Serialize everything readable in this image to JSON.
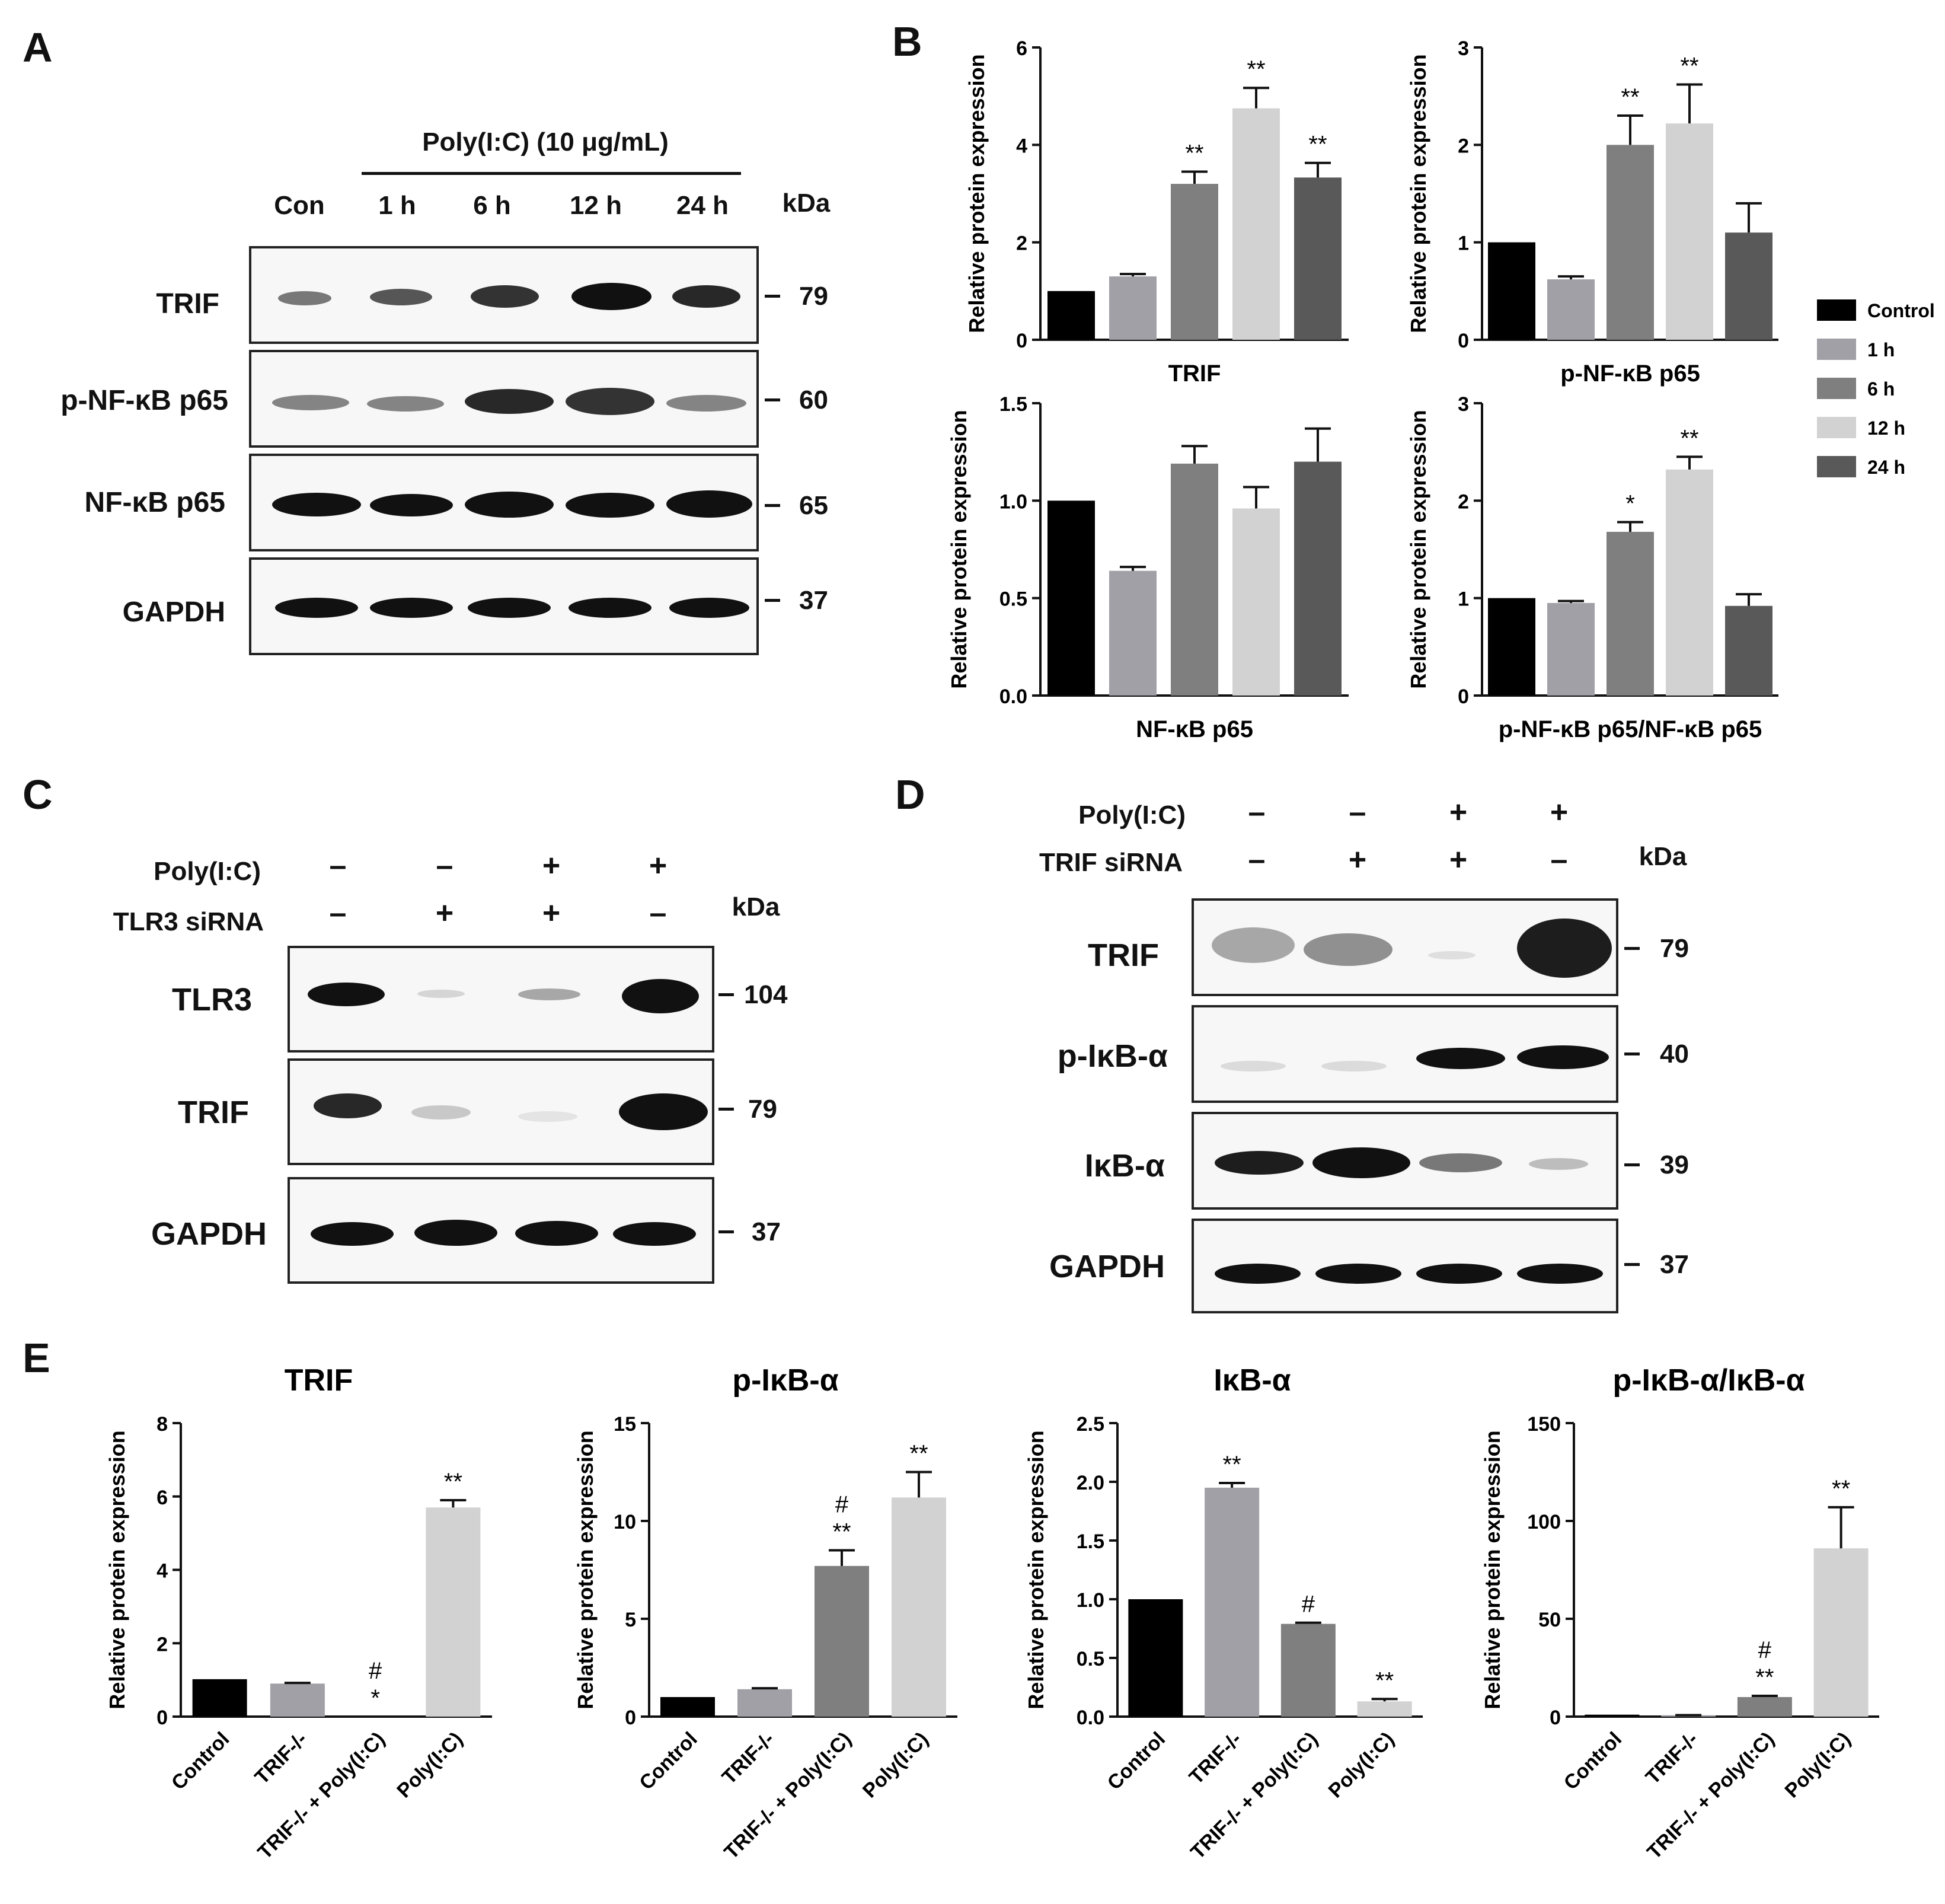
{
  "panels": {
    "A": {
      "letter": "A",
      "treatment": "Poly(I:C) (10 μg/mL)",
      "lanes": [
        "Con",
        "1 h",
        "6 h",
        "12 h",
        "24 h"
      ],
      "kda_label": "kDa",
      "rows": [
        {
          "label": "TRIF",
          "kda": "79"
        },
        {
          "label": "p-NF-κB p65",
          "kda": "60"
        },
        {
          "label": "NF-κB p65",
          "kda": "65"
        },
        {
          "label": "GAPDH",
          "kda": "37"
        }
      ]
    },
    "B": {
      "letter": "B"
    },
    "C": {
      "letter": "C",
      "cond1_label": "Poly(I:C)",
      "cond1": [
        "–",
        "–",
        "+",
        "+"
      ],
      "cond2_label": "TLR3 siRNA",
      "cond2": [
        "–",
        "+",
        "+",
        "–"
      ],
      "kda_label": "kDa",
      "rows": [
        {
          "label": "TLR3",
          "kda": "104"
        },
        {
          "label": "TRIF",
          "kda": "79"
        },
        {
          "label": "GAPDH",
          "kda": "37"
        }
      ]
    },
    "D": {
      "letter": "D",
      "cond1_label": "Poly(I:C)",
      "cond1": [
        "–",
        "–",
        "+",
        "+"
      ],
      "cond2_label": "TRIF siRNA",
      "cond2": [
        "–",
        "+",
        "+",
        "–"
      ],
      "kda_label": "kDa",
      "rows": [
        {
          "label": "TRIF",
          "kda": "79"
        },
        {
          "label": "p-IκB-α",
          "kda": "40"
        },
        {
          "label": "IκB-α",
          "kda": "39"
        },
        {
          "label": "GAPDH",
          "kda": "37"
        }
      ]
    },
    "E": {
      "letter": "E"
    }
  },
  "chart_data": [
    {
      "panel": "B",
      "type": "bar",
      "title": "",
      "xlabel": "TRIF",
      "ylabel": "Relative protein expression",
      "ylim": [
        0,
        6
      ],
      "yticks": [
        "0",
        "2",
        "4",
        "6"
      ],
      "categories": [
        "Control",
        "1 h",
        "6 h",
        "12 h",
        "24 h"
      ],
      "values": [
        1.0,
        1.3,
        3.2,
        4.75,
        3.33
      ],
      "errors": [
        0,
        0.05,
        0.25,
        0.42,
        0.3
      ],
      "annotations": [
        "",
        "",
        "**",
        "**",
        "**"
      ],
      "colors": [
        "#000000",
        "#a0a0a6",
        "#7f7f7f",
        "#d2d2d2",
        "#595959"
      ]
    },
    {
      "panel": "B",
      "type": "bar",
      "title": "",
      "xlabel": "p-NF-κB p65",
      "ylabel": "Relative protein expression",
      "ylim": [
        0,
        3
      ],
      "yticks": [
        "0",
        "1",
        "2",
        "3"
      ],
      "categories": [
        "Control",
        "1 h",
        "6 h",
        "12 h",
        "24 h"
      ],
      "values": [
        1.0,
        0.62,
        2.0,
        2.22,
        1.1
      ],
      "errors": [
        0,
        0.03,
        0.3,
        0.4,
        0.3
      ],
      "annotations": [
        "",
        "",
        "**",
        "**",
        ""
      ],
      "colors": [
        "#000000",
        "#a0a0a6",
        "#7f7f7f",
        "#d2d2d2",
        "#595959"
      ]
    },
    {
      "panel": "B",
      "type": "bar",
      "title": "",
      "xlabel": "NF-κB p65",
      "ylabel": "Relative protein expression",
      "ylim": [
        0,
        1.5
      ],
      "yticks": [
        "0.0",
        "0.5",
        "1.0",
        "1.5"
      ],
      "categories": [
        "Control",
        "1 h",
        "6 h",
        "12 h",
        "24 h"
      ],
      "values": [
        1.0,
        0.64,
        1.19,
        0.96,
        1.2
      ],
      "errors": [
        0,
        0.02,
        0.09,
        0.11,
        0.17
      ],
      "annotations": [
        "",
        "",
        "",
        "",
        ""
      ],
      "colors": [
        "#000000",
        "#a0a0a6",
        "#7f7f7f",
        "#d2d2d2",
        "#595959"
      ]
    },
    {
      "panel": "B",
      "type": "bar",
      "title": "",
      "xlabel": "p-NF-κB p65/NF-κB p65",
      "ylabel": "Relative protein expression",
      "ylim": [
        0,
        3
      ],
      "yticks": [
        "0",
        "1",
        "2",
        "3"
      ],
      "categories": [
        "Control",
        "1 h",
        "6 h",
        "12 h",
        "24 h"
      ],
      "values": [
        1.0,
        0.95,
        1.68,
        2.32,
        0.92
      ],
      "errors": [
        0,
        0.02,
        0.1,
        0.13,
        0.12
      ],
      "annotations": [
        "",
        "",
        "*",
        "**",
        ""
      ],
      "colors": [
        "#000000",
        "#a0a0a6",
        "#7f7f7f",
        "#d2d2d2",
        "#595959"
      ]
    },
    {
      "panel": "E",
      "type": "bar",
      "title": "TRIF",
      "xlabel": "",
      "ylabel": "Relative protein expression",
      "ylim": [
        0,
        8
      ],
      "yticks": [
        "0",
        "2",
        "4",
        "6",
        "8"
      ],
      "categories": [
        "Control",
        "TRIF-/-",
        "TRIF-/- + Poly(I:C)",
        "Poly(I:C)"
      ],
      "values": [
        1.02,
        0.9,
        0.0,
        5.7
      ],
      "errors": [
        0,
        0.02,
        0,
        0.2
      ],
      "annotations": [
        "",
        "",
        "#\n*",
        "**"
      ],
      "colors": [
        "#000000",
        "#a0a0a6",
        "#7f7f7f",
        "#d2d2d2"
      ]
    },
    {
      "panel": "E",
      "type": "bar",
      "title": "p-IκB-α",
      "xlabel": "",
      "ylabel": "Relative protein expression",
      "ylim": [
        0,
        15
      ],
      "yticks": [
        "0",
        "5",
        "10",
        "15"
      ],
      "categories": [
        "Control",
        "TRIF-/-",
        "TRIF-/- + Poly(I:C)",
        "Poly(I:C)"
      ],
      "values": [
        1.0,
        1.4,
        7.7,
        11.2
      ],
      "errors": [
        0,
        0.05,
        0.8,
        1.3
      ],
      "annotations": [
        "",
        "",
        "#\n**",
        "**"
      ],
      "colors": [
        "#000000",
        "#a0a0a6",
        "#7f7f7f",
        "#d2d2d2"
      ]
    },
    {
      "panel": "E",
      "type": "bar",
      "title": "IκB-α",
      "xlabel": "",
      "ylabel": "Relative protein expression",
      "ylim": [
        0,
        2.5
      ],
      "yticks": [
        "0.0",
        "0.5",
        "1.0",
        "1.5",
        "2.0",
        "2.5"
      ],
      "categories": [
        "Control",
        "TRIF-/-",
        "TRIF-/- + Poly(I:C)",
        "Poly(I:C)"
      ],
      "values": [
        1.0,
        1.95,
        0.79,
        0.13
      ],
      "errors": [
        0,
        0.04,
        0.01,
        0.02
      ],
      "annotations": [
        "",
        "**",
        "#",
        "**"
      ],
      "colors": [
        "#000000",
        "#a0a0a6",
        "#7f7f7f",
        "#d2d2d2"
      ]
    },
    {
      "panel": "E",
      "type": "bar",
      "title": "p-IκB-α/IκB-α",
      "xlabel": "",
      "ylabel": "Relative protein expression",
      "ylim": [
        0,
        150
      ],
      "yticks": [
        "0",
        "50",
        "100",
        "150"
      ],
      "categories": [
        "Control",
        "TRIF-/-",
        "TRIF-/- + Poly(I:C)",
        "Poly(I:C)"
      ],
      "values": [
        1.0,
        0.7,
        10.0,
        86.0
      ],
      "errors": [
        0,
        0.05,
        0.6,
        21.0
      ],
      "annotations": [
        "",
        "",
        "#\n**",
        "**"
      ],
      "colors": [
        "#000000",
        "#a0a0a6",
        "#7f7f7f",
        "#d2d2d2"
      ]
    }
  ],
  "legend": {
    "position": "right",
    "entries": [
      "Control",
      "1 h",
      "6 h",
      "12 h",
      "24 h"
    ],
    "colors": [
      "#000000",
      "#a0a0a6",
      "#7f7f7f",
      "#d2d2d2",
      "#595959"
    ]
  }
}
